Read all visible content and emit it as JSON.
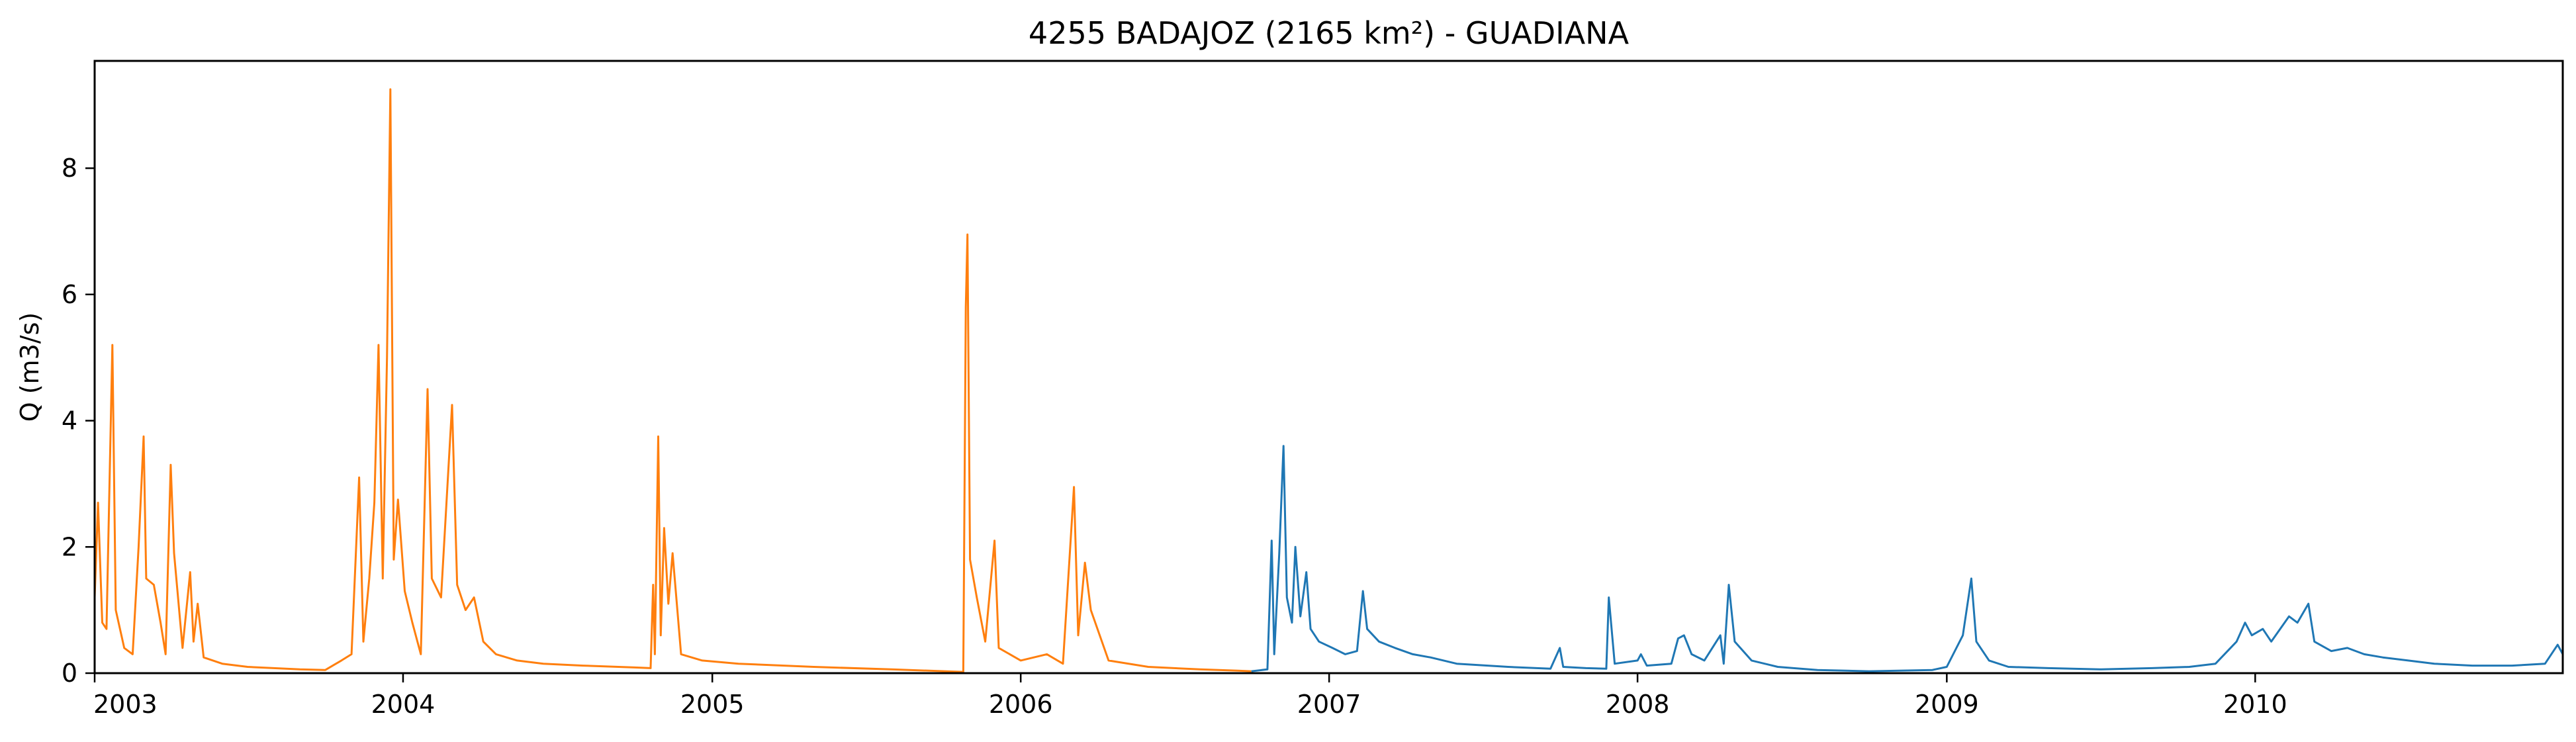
{
  "chart_data": {
    "type": "line",
    "title": "4255 BADAJOZ (2165 km²) - GUADIANA",
    "xlabel": "",
    "ylabel": "Q (m3/s)",
    "xlim": [
      "2003-01-01",
      "2010-12-31"
    ],
    "ylim": [
      0,
      9.7
    ],
    "x_ticks": [
      "2003",
      "2004",
      "2005",
      "2006",
      "2007",
      "2008",
      "2009",
      "2010"
    ],
    "y_ticks": [
      "0",
      "2",
      "4",
      "6",
      "8"
    ],
    "grid": false,
    "legend": "none",
    "series": [
      {
        "color": "#ff7f0e",
        "points": [
          [
            "2003-01-01",
            1.2
          ],
          [
            "2003-01-05",
            2.7
          ],
          [
            "2003-01-10",
            0.8
          ],
          [
            "2003-01-15",
            0.7
          ],
          [
            "2003-01-22",
            5.2
          ],
          [
            "2003-01-26",
            1.0
          ],
          [
            "2003-02-05",
            0.4
          ],
          [
            "2003-02-15",
            0.3
          ],
          [
            "2003-02-22",
            2.0
          ],
          [
            "2003-02-28",
            3.75
          ],
          [
            "2003-03-03",
            1.5
          ],
          [
            "2003-03-12",
            1.4
          ],
          [
            "2003-03-20",
            0.8
          ],
          [
            "2003-03-26",
            0.3
          ],
          [
            "2003-04-01",
            3.3
          ],
          [
            "2003-04-05",
            1.9
          ],
          [
            "2003-04-15",
            0.4
          ],
          [
            "2003-04-24",
            1.6
          ],
          [
            "2003-04-28",
            0.5
          ],
          [
            "2003-05-03",
            1.1
          ],
          [
            "2003-05-10",
            0.25
          ],
          [
            "2003-06-01",
            0.15
          ],
          [
            "2003-07-01",
            0.1
          ],
          [
            "2003-08-01",
            0.08
          ],
          [
            "2003-09-01",
            0.06
          ],
          [
            "2003-10-01",
            0.05
          ],
          [
            "2003-10-20",
            0.2
          ],
          [
            "2003-11-01",
            0.3
          ],
          [
            "2003-11-10",
            3.1
          ],
          [
            "2003-11-15",
            0.5
          ],
          [
            "2003-11-22",
            1.5
          ],
          [
            "2003-11-28",
            2.7
          ],
          [
            "2003-12-03",
            5.2
          ],
          [
            "2003-12-08",
            1.5
          ],
          [
            "2003-12-13",
            5.0
          ],
          [
            "2003-12-17",
            9.25
          ],
          [
            "2003-12-21",
            1.8
          ],
          [
            "2003-12-26",
            2.75
          ],
          [
            "2004-01-03",
            1.3
          ],
          [
            "2004-01-12",
            0.8
          ],
          [
            "2004-01-22",
            0.3
          ],
          [
            "2004-01-30",
            4.5
          ],
          [
            "2004-02-04",
            1.5
          ],
          [
            "2004-02-15",
            1.2
          ],
          [
            "2004-02-28",
            4.25
          ],
          [
            "2004-03-05",
            1.4
          ],
          [
            "2004-03-15",
            1.0
          ],
          [
            "2004-03-25",
            1.2
          ],
          [
            "2004-04-05",
            0.5
          ],
          [
            "2004-04-20",
            0.3
          ],
          [
            "2004-05-15",
            0.2
          ],
          [
            "2004-06-15",
            0.15
          ],
          [
            "2004-08-01",
            0.12
          ],
          [
            "2004-10-01",
            0.09
          ],
          [
            "2004-10-20",
            0.08
          ],
          [
            "2004-10-23",
            1.4
          ],
          [
            "2004-10-25",
            0.3
          ],
          [
            "2004-10-29",
            3.75
          ],
          [
            "2004-11-01",
            0.6
          ],
          [
            "2004-11-05",
            2.3
          ],
          [
            "2004-11-10",
            1.1
          ],
          [
            "2004-11-15",
            1.9
          ],
          [
            "2004-11-25",
            0.3
          ],
          [
            "2004-12-20",
            0.2
          ],
          [
            "2005-02-01",
            0.15
          ],
          [
            "2005-05-01",
            0.1
          ],
          [
            "2005-08-01",
            0.06
          ],
          [
            "2005-10-25",
            0.02
          ],
          [
            "2005-10-28",
            5.8
          ],
          [
            "2005-10-30",
            6.95
          ],
          [
            "2005-11-02",
            1.8
          ],
          [
            "2005-11-10",
            1.2
          ],
          [
            "2005-11-20",
            0.5
          ],
          [
            "2005-12-01",
            2.1
          ],
          [
            "2005-12-06",
            0.4
          ],
          [
            "2006-01-01",
            0.2
          ],
          [
            "2006-02-01",
            0.3
          ],
          [
            "2006-02-20",
            0.15
          ],
          [
            "2006-03-05",
            2.95
          ],
          [
            "2006-03-10",
            0.6
          ],
          [
            "2006-03-18",
            1.75
          ],
          [
            "2006-03-25",
            1.0
          ],
          [
            "2006-04-15",
            0.2
          ],
          [
            "2006-06-01",
            0.1
          ],
          [
            "2006-08-01",
            0.06
          ],
          [
            "2006-09-15",
            0.04
          ],
          [
            "2006-10-01",
            0.03
          ]
        ]
      },
      {
        "color": "#1f77b4",
        "points": [
          [
            "2006-10-01",
            0.03
          ],
          [
            "2006-10-20",
            0.06
          ],
          [
            "2006-10-25",
            2.1
          ],
          [
            "2006-10-28",
            0.3
          ],
          [
            "2006-11-03",
            1.9
          ],
          [
            "2006-11-08",
            3.6
          ],
          [
            "2006-11-12",
            1.2
          ],
          [
            "2006-11-18",
            0.8
          ],
          [
            "2006-11-22",
            2.0
          ],
          [
            "2006-11-28",
            0.9
          ],
          [
            "2006-12-05",
            1.6
          ],
          [
            "2006-12-10",
            0.7
          ],
          [
            "2006-12-20",
            0.5
          ],
          [
            "2007-01-05",
            0.4
          ],
          [
            "2007-01-20",
            0.3
          ],
          [
            "2007-02-03",
            0.35
          ],
          [
            "2007-02-10",
            1.3
          ],
          [
            "2007-02-15",
            0.7
          ],
          [
            "2007-03-01",
            0.5
          ],
          [
            "2007-03-20",
            0.4
          ],
          [
            "2007-04-10",
            0.3
          ],
          [
            "2007-05-01",
            0.25
          ],
          [
            "2007-06-01",
            0.15
          ],
          [
            "2007-08-01",
            0.1
          ],
          [
            "2007-09-20",
            0.07
          ],
          [
            "2007-10-01",
            0.4
          ],
          [
            "2007-10-05",
            0.1
          ],
          [
            "2007-11-01",
            0.08
          ],
          [
            "2007-11-25",
            0.07
          ],
          [
            "2007-11-28",
            1.2
          ],
          [
            "2007-12-05",
            0.15
          ],
          [
            "2008-01-01",
            0.2
          ],
          [
            "2008-01-05",
            0.3
          ],
          [
            "2008-01-12",
            0.12
          ],
          [
            "2008-02-10",
            0.15
          ],
          [
            "2008-02-18",
            0.55
          ],
          [
            "2008-02-25",
            0.6
          ],
          [
            "2008-03-05",
            0.3
          ],
          [
            "2008-03-20",
            0.2
          ],
          [
            "2008-04-08",
            0.6
          ],
          [
            "2008-04-12",
            0.15
          ],
          [
            "2008-04-18",
            1.4
          ],
          [
            "2008-04-25",
            0.5
          ],
          [
            "2008-05-15",
            0.2
          ],
          [
            "2008-06-15",
            0.1
          ],
          [
            "2008-08-01",
            0.05
          ],
          [
            "2008-10-01",
            0.03
          ],
          [
            "2008-12-15",
            0.05
          ],
          [
            "2009-01-01",
            0.1
          ],
          [
            "2009-01-20",
            0.6
          ],
          [
            "2009-01-30",
            1.5
          ],
          [
            "2009-02-05",
            0.5
          ],
          [
            "2009-02-20",
            0.2
          ],
          [
            "2009-03-15",
            0.1
          ],
          [
            "2009-05-01",
            0.08
          ],
          [
            "2009-07-01",
            0.06
          ],
          [
            "2009-09-01",
            0.08
          ],
          [
            "2009-10-15",
            0.1
          ],
          [
            "2009-11-15",
            0.15
          ],
          [
            "2009-12-10",
            0.5
          ],
          [
            "2009-12-20",
            0.8
          ],
          [
            "2009-12-28",
            0.6
          ],
          [
            "2010-01-10",
            0.7
          ],
          [
            "2010-01-20",
            0.5
          ],
          [
            "2010-02-10",
            0.9
          ],
          [
            "2010-02-20",
            0.8
          ],
          [
            "2010-03-05",
            1.1
          ],
          [
            "2010-03-12",
            0.5
          ],
          [
            "2010-04-01",
            0.35
          ],
          [
            "2010-04-20",
            0.4
          ],
          [
            "2010-05-10",
            0.3
          ],
          [
            "2010-06-01",
            0.25
          ],
          [
            "2010-07-01",
            0.2
          ],
          [
            "2010-08-01",
            0.15
          ],
          [
            "2010-09-15",
            0.12
          ],
          [
            "2010-11-01",
            0.12
          ],
          [
            "2010-12-10",
            0.15
          ],
          [
            "2010-12-25",
            0.45
          ],
          [
            "2010-12-31",
            0.3
          ]
        ]
      }
    ]
  }
}
